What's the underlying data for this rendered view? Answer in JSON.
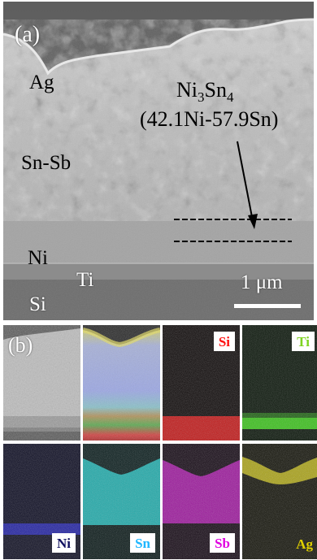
{
  "panel_a": {
    "label": "(a)",
    "layers": {
      "ag": "Ag",
      "snsb": "Sn-Sb",
      "ni": "Ni",
      "ti": "Ti",
      "si": "Si"
    },
    "phase_name": "Ni",
    "phase_sub1": "3",
    "phase_mid": "Sn",
    "phase_sub2": "4",
    "phase_composition": "(42.1Ni-57.9Sn)",
    "scale_bar_label": "1 μm"
  },
  "panel_b": {
    "label": "(b)",
    "maps": [
      {
        "element": "Si",
        "color": "#ff1010"
      },
      {
        "element": "Ti",
        "color": "#7ed321"
      },
      {
        "element": "Ni",
        "color": "#101060"
      },
      {
        "element": "Sn",
        "color": "#1fb7ff"
      },
      {
        "element": "Sb",
        "color": "#e000e0"
      },
      {
        "element": "Ag",
        "color": "#e0d000"
      }
    ]
  }
}
